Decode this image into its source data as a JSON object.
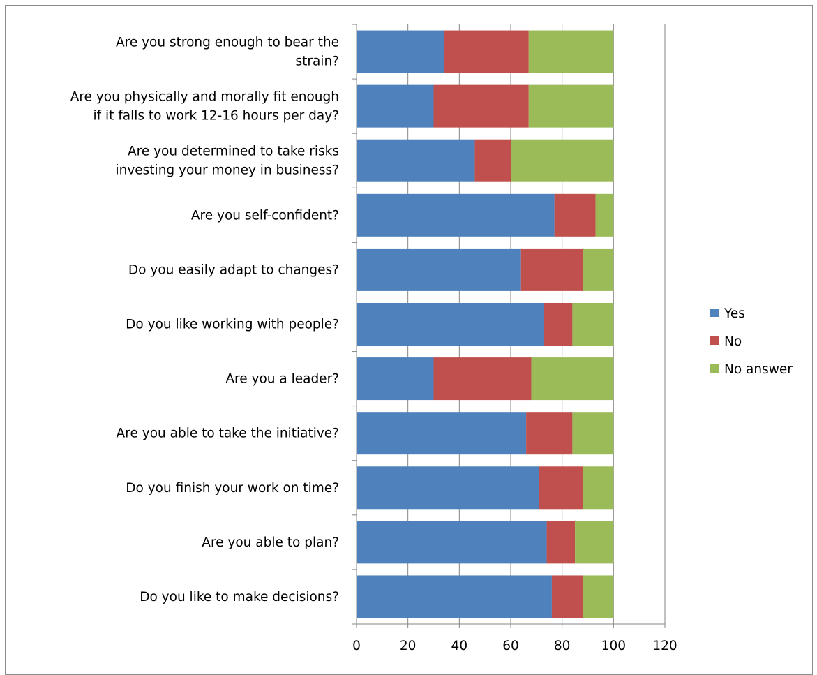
{
  "chart_data": {
    "type": "bar",
    "orientation": "horizontal",
    "stacked": true,
    "categories": [
      [
        "Are you strong enough to bear the",
        "strain?"
      ],
      [
        "Are you physically and morally fit enough",
        "if it falls to work 12-16 hours per day?"
      ],
      [
        "Are you determined to take risks",
        "investing your money in business?"
      ],
      [
        "Are you self-confident?"
      ],
      [
        "Do you easily adapt to changes?"
      ],
      [
        "Do you like working with people?"
      ],
      [
        "Are you a leader?"
      ],
      [
        "Are you able to take the initiative?"
      ],
      [
        "Do you finish your work on time?"
      ],
      [
        "Are you able to plan?"
      ],
      [
        "Do you like to make decisions?"
      ]
    ],
    "series": [
      {
        "name": "Yes",
        "color": "#4f81bd",
        "values": [
          34,
          30,
          46,
          77,
          64,
          73,
          30,
          66,
          71,
          74,
          76
        ]
      },
      {
        "name": "No",
        "color": "#c0504d",
        "values": [
          33,
          37,
          14,
          16,
          24,
          11,
          38,
          18,
          17,
          11,
          12
        ]
      },
      {
        "name": "No answer",
        "color": "#9bbb59",
        "values": [
          33,
          33,
          40,
          7,
          12,
          16,
          32,
          16,
          12,
          15,
          12
        ]
      }
    ],
    "xlim": [
      0,
      120
    ],
    "xticks": [
      "0",
      "20",
      "40",
      "60",
      "80",
      "100",
      "120"
    ],
    "grid": "vertical major gridlines",
    "legend_position": "right",
    "title": "",
    "xlabel": "",
    "ylabel": ""
  }
}
